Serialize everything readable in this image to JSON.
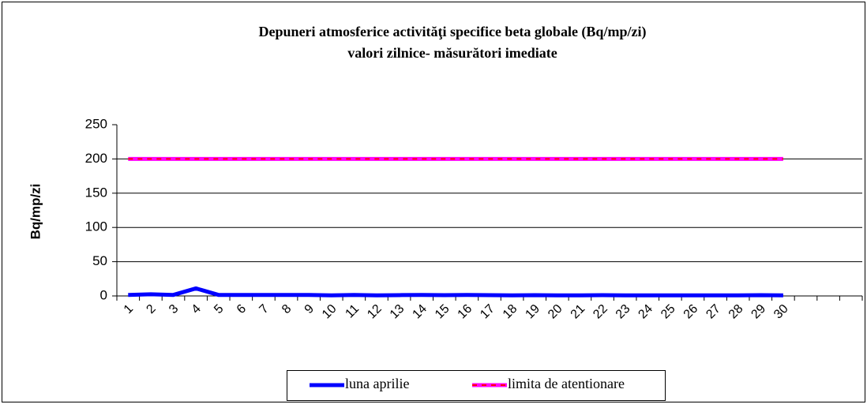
{
  "chart_data": {
    "type": "line",
    "title": "Depuneri atmosferice activităţi specifice beta globale (Bq/mp/zi)",
    "subtitle": "valori zilnice- măsurători imediate",
    "y_label": "Bq/mp/zi",
    "categories": [
      "1",
      "2",
      "3",
      "4",
      "5",
      "6",
      "7",
      "8",
      "9",
      "10",
      "11",
      "12",
      "13",
      "14",
      "15",
      "16",
      "17",
      "18",
      "19",
      "20",
      "21",
      "22",
      "23",
      "24",
      "25",
      "26",
      "27",
      "28",
      "29",
      "30",
      null,
      null,
      null
    ],
    "series": [
      {
        "name": "luna aprilie",
        "color": "#0000ff",
        "values": [
          1.5,
          2.5,
          1.5,
          11,
          1.5,
          1.5,
          1.5,
          1.5,
          1.5,
          0.8,
          1.5,
          0.8,
          1.2,
          1.5,
          1.2,
          1.5,
          1.2,
          0.8,
          1.2,
          0.8,
          0.8,
          1.2,
          0.8,
          0.8,
          0.8,
          0.8,
          0.8,
          0.8,
          1.2,
          0.8,
          null,
          null,
          null
        ]
      },
      {
        "name": "limita de atentionare",
        "color": "#ff00ff",
        "dash_color": "#ff0000",
        "values": [
          200,
          200,
          200,
          200,
          200,
          200,
          200,
          200,
          200,
          200,
          200,
          200,
          200,
          200,
          200,
          200,
          200,
          200,
          200,
          200,
          200,
          200,
          200,
          200,
          200,
          200,
          200,
          200,
          200,
          200,
          null,
          null,
          null
        ]
      }
    ],
    "ylim": [
      0,
      250
    ],
    "yticks": [
      0,
      50,
      100,
      150,
      200,
      250
    ],
    "grid": true,
    "legend": "bottom"
  }
}
